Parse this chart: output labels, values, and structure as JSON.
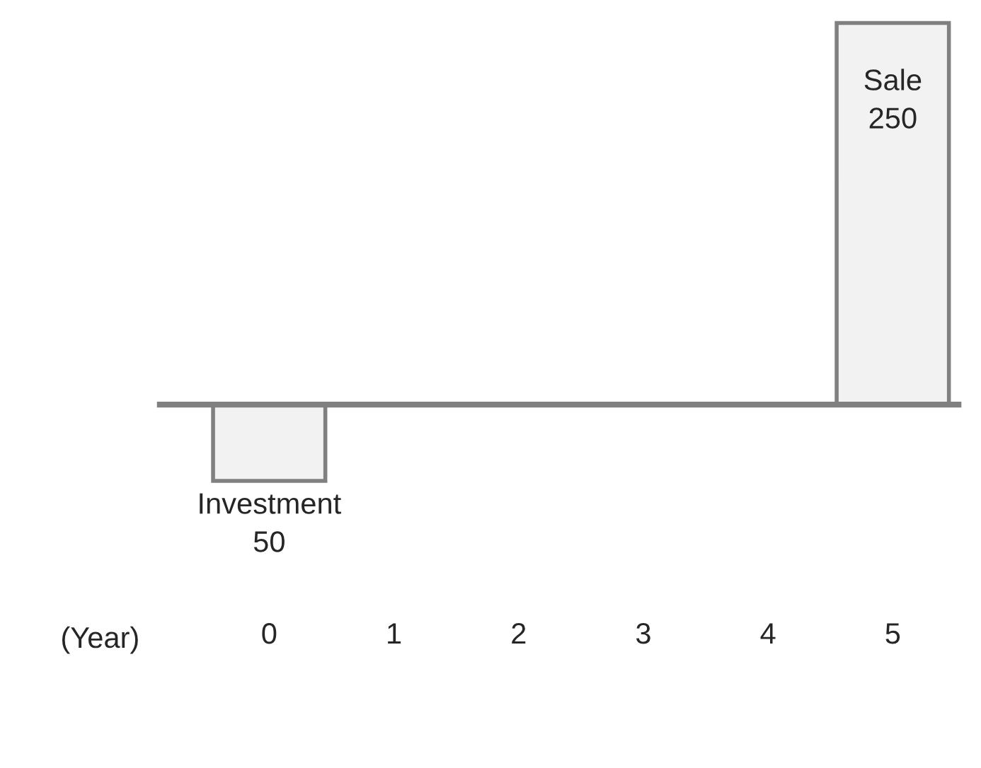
{
  "chart_data": {
    "type": "bar",
    "xlabel": "(Year)",
    "categories": [
      "0",
      "1",
      "2",
      "3",
      "4",
      "5"
    ],
    "values": [
      -50,
      null,
      null,
      null,
      null,
      250
    ],
    "value_labels": [
      "Investment\n50",
      null,
      null,
      null,
      null,
      "Sale\n250"
    ],
    "color": "#f2f2f2",
    "grid": false,
    "legend": false
  }
}
